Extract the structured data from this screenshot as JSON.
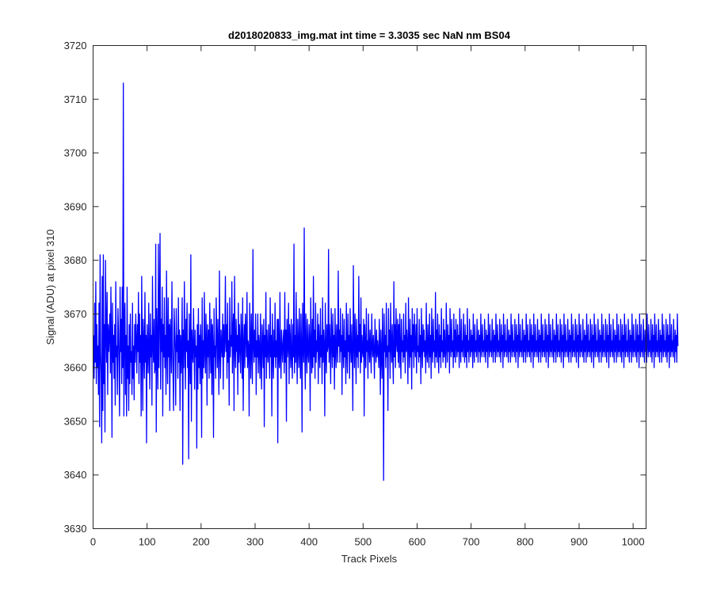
{
  "chart_data": {
    "type": "line",
    "title": "d2018020833_img.mat int time = 3.3035 sec  NaN nm BS04",
    "xlabel": "Track Pixels",
    "ylabel": "Signal (ADU) at pixel 310",
    "xlim": [
      0,
      1024
    ],
    "ylim": [
      3630,
      3720
    ],
    "xticks": [
      0,
      100,
      200,
      300,
      400,
      500,
      600,
      700,
      800,
      900,
      1000
    ],
    "yticks": [
      3630,
      3640,
      3650,
      3660,
      3670,
      3680,
      3690,
      3700,
      3710,
      3720
    ],
    "grid": false,
    "legend": "none",
    "series": [
      {
        "color": "#0000ff",
        "x_start": 1,
        "x_step": 1,
        "values": [
          3666,
          3658,
          3672,
          3661,
          3676,
          3657,
          3668,
          3660,
          3664,
          3655,
          3672,
          3649,
          3681,
          3663,
          3658,
          3646,
          3677,
          3652,
          3681,
          3657,
          3668,
          3648,
          3680,
          3667,
          3661,
          3674,
          3655,
          3668,
          3663,
          3666,
          3670,
          3659,
          3675,
          3664,
          3647,
          3672,
          3661,
          3666,
          3658,
          3668,
          3653,
          3676,
          3662,
          3664,
          3655,
          3671,
          3667,
          3660,
          3651,
          3675,
          3663,
          3669,
          3657,
          3675,
          3660,
          3713,
          3651,
          3668,
          3672,
          3655,
          3666,
          3651,
          3675,
          3658,
          3664,
          3652,
          3668,
          3657,
          3670,
          3661,
          3663,
          3655,
          3672,
          3658,
          3664,
          3654,
          3668,
          3661,
          3670,
          3665,
          3659,
          3668,
          3663,
          3674,
          3657,
          3670,
          3661,
          3666,
          3651,
          3677,
          3665,
          3652,
          3669,
          3664,
          3658,
          3674,
          3661,
          3666,
          3646,
          3668,
          3663,
          3659,
          3672,
          3663,
          3656,
          3670,
          3662,
          3666,
          3653,
          3677,
          3664,
          3661,
          3669,
          3659,
          3660,
          3683,
          3648,
          3671,
          3664,
          3656,
          3683,
          3660,
          3670,
          3685,
          3656,
          3669,
          3663,
          3675,
          3651,
          3668,
          3662,
          3673,
          3660,
          3666,
          3655,
          3678,
          3664,
          3657,
          3673,
          3662,
          3668,
          3652,
          3669,
          3665,
          3659,
          3676,
          3664,
          3659,
          3652,
          3671,
          3667,
          3663,
          3653,
          3671,
          3663,
          3666,
          3658,
          3673,
          3661,
          3667,
          3652,
          3666,
          3659,
          3664,
          3673,
          3642,
          3667,
          3660,
          3676,
          3664,
          3656,
          3669,
          3663,
          3672,
          3660,
          3665,
          3643,
          3670,
          3662,
          3657,
          3681,
          3650,
          3667,
          3663,
          3661,
          3671,
          3664,
          3656,
          3667,
          3662,
          3664,
          3645,
          3668,
          3656,
          3671,
          3660,
          3666,
          3657,
          3668,
          3664,
          3647,
          3673,
          3658,
          3665,
          3660,
          3674,
          3663,
          3659,
          3670,
          3665,
          3653,
          3668,
          3662,
          3667,
          3658,
          3672,
          3664,
          3659,
          3669,
          3655,
          3668,
          3664,
          3647,
          3671,
          3662,
          3664,
          3658,
          3673,
          3666,
          3660,
          3669,
          3663,
          3655,
          3678,
          3663,
          3658,
          3667,
          3664,
          3662,
          3670,
          3656,
          3668,
          3662,
          3665,
          3677,
          3663,
          3668,
          3658,
          3672,
          3661,
          3665,
          3653,
          3673,
          3662,
          3666,
          3664,
          3676,
          3659,
          3667,
          3670,
          3652,
          3677,
          3664,
          3660,
          3669,
          3663,
          3666,
          3655,
          3672,
          3661,
          3668,
          3664,
          3659,
          3670,
          3665,
          3658,
          3673,
          3652,
          3664,
          3668,
          3660,
          3670,
          3666,
          3662,
          3674,
          3660,
          3665,
          3664,
          3651,
          3672,
          3665,
          3658,
          3670,
          3663,
          3657,
          3682,
          3664,
          3661,
          3667,
          3662,
          3670,
          3655,
          3665,
          3662,
          3670,
          3659,
          3666,
          3664,
          3658,
          3670,
          3662,
          3656,
          3668,
          3665,
          3660,
          3669,
          3649,
          3666,
          3662,
          3674,
          3658,
          3667,
          3663,
          3661,
          3668,
          3664,
          3658,
          3673,
          3662,
          3666,
          3651,
          3670,
          3663,
          3658,
          3667,
          3662,
          3672,
          3660,
          3665,
          3662,
          3669,
          3646,
          3669,
          3663,
          3660,
          3674,
          3662,
          3658,
          3667,
          3664,
          3661,
          3665,
          3667,
          3659,
          3674,
          3661,
          3667,
          3650,
          3669,
          3662,
          3664,
          3672,
          3657,
          3668,
          3665,
          3660,
          3669,
          3662,
          3658,
          3668,
          3662,
          3683,
          3659,
          3666,
          3661,
          3674,
          3663,
          3657,
          3669,
          3664,
          3660,
          3671,
          3663,
          3658,
          3670,
          3664,
          3648,
          3672,
          3664,
          3661,
          3686,
          3663,
          3656,
          3670,
          3664,
          3659,
          3669,
          3663,
          3661,
          3668,
          3665,
          3652,
          3673,
          3664,
          3659,
          3669,
          3660,
          3677,
          3662,
          3667,
          3658,
          3672,
          3661,
          3665,
          3663,
          3670,
          3657,
          3668,
          3664,
          3660,
          3671,
          3662,
          3666,
          3657,
          3673,
          3661,
          3667,
          3664,
          3651,
          3672,
          3663,
          3659,
          3668,
          3663,
          3664,
          3682,
          3661,
          3668,
          3664,
          3657,
          3671,
          3665,
          3660,
          3670,
          3662,
          3666,
          3656,
          3671,
          3663,
          3660,
          3668,
          3665,
          3661,
          3678,
          3664,
          3667,
          3661,
          3671,
          3663,
          3666,
          3655,
          3670,
          3664,
          3660,
          3669,
          3662,
          3665,
          3657,
          3672,
          3663,
          3659,
          3670,
          3663,
          3666,
          3658,
          3671,
          3664,
          3661,
          3668,
          3662,
          3652,
          3679,
          3665,
          3660,
          3670,
          3664,
          3657,
          3669,
          3662,
          3666,
          3660,
          3677,
          3663,
          3668,
          3659,
          3673,
          3661,
          3666,
          3663,
          3662,
          3669,
          3651,
          3668,
          3664,
          3660,
          3671,
          3663,
          3665,
          3658,
          3670,
          3664,
          3661,
          3667,
          3663,
          3659,
          3670,
          3664,
          3662,
          3666,
          3663,
          3658,
          3669,
          3664,
          3661,
          3667,
          3662,
          3665,
          3663,
          3660,
          3669,
          3664,
          3655,
          3667,
          3662,
          3658,
          3671,
          3664,
          3639,
          3670,
          3663,
          3666,
          3660,
          3672,
          3662,
          3664,
          3652,
          3671,
          3663,
          3667,
          3658,
          3672,
          3664,
          3661,
          3668,
          3662,
          3657,
          3676,
          3662,
          3668,
          3660,
          3671,
          3665,
          3663,
          3669,
          3661,
          3668,
          3660,
          3670,
          3664,
          3658,
          3669,
          3663,
          3665,
          3661,
          3670,
          3662,
          3666,
          3659,
          3672,
          3663,
          3667,
          3664,
          3657,
          3673,
          3664,
          3660,
          3669,
          3662,
          3666,
          3656,
          3671,
          3663,
          3668,
          3660,
          3670,
          3664,
          3662,
          3668,
          3659,
          3671,
          3663,
          3664,
          3661,
          3669,
          3662,
          3666,
          3657,
          3671,
          3664,
          3660,
          3668,
          3663,
          3667,
          3662,
          3665,
          3659,
          3672,
          3663,
          3661,
          3668,
          3664,
          3660,
          3670,
          3662,
          3666,
          3658,
          3671,
          3664,
          3661,
          3669,
          3663,
          3665,
          3660,
          3674,
          3662,
          3667,
          3661,
          3670,
          3664,
          3659,
          3668,
          3662,
          3666,
          3660,
          3671,
          3663,
          3665,
          3661,
          3669,
          3662,
          3667,
          3663,
          3660,
          3672,
          3664,
          3661,
          3668,
          3663,
          3666,
          3659,
          3671,
          3664,
          3662,
          3669,
          3663,
          3665,
          3660,
          3670,
          3662,
          3667,
          3661,
          3669,
          3664,
          3662,
          3668,
          3663,
          3666,
          3660,
          3671,
          3664,
          3661,
          3669,
          3663,
          3665,
          3662,
          3670,
          3664,
          3661,
          3668,
          3662,
          3666,
          3660,
          3671,
          3663,
          3665,
          3661,
          3669,
          3664,
          3662,
          3667,
          3663,
          3666,
          3660,
          3670,
          3664,
          3661,
          3668,
          3663,
          3665,
          3662,
          3669,
          3664,
          3661,
          3667,
          3663,
          3666,
          3661,
          3670,
          3664,
          3662,
          3668,
          3663,
          3665,
          3662,
          3669,
          3664,
          3661,
          3667,
          3663,
          3666,
          3660,
          3670,
          3664,
          3662,
          3668,
          3663,
          3665,
          3662,
          3669,
          3664,
          3661,
          3667,
          3663,
          3666,
          3661,
          3670,
          3664,
          3662,
          3668,
          3663,
          3665,
          3662,
          3669,
          3664,
          3661,
          3668,
          3663,
          3666,
          3660,
          3670,
          3664,
          3662,
          3668,
          3663,
          3665,
          3662,
          3669,
          3664,
          3661,
          3667,
          3663,
          3666,
          3661,
          3670,
          3664,
          3662,
          3668,
          3663,
          3665,
          3662,
          3669,
          3664,
          3661,
          3668,
          3663,
          3666,
          3660,
          3670,
          3664,
          3662,
          3668,
          3663,
          3665,
          3662,
          3669,
          3664,
          3661,
          3667,
          3663,
          3666,
          3661,
          3670,
          3664,
          3662,
          3668,
          3663,
          3665,
          3662,
          3669,
          3664,
          3661,
          3668,
          3663,
          3666,
          3660,
          3670,
          3664,
          3662,
          3668,
          3663,
          3665,
          3662,
          3669,
          3664,
          3661,
          3667,
          3663,
          3666,
          3661,
          3670,
          3664,
          3662,
          3668,
          3663,
          3665,
          3662,
          3669,
          3664,
          3661,
          3668,
          3663,
          3666,
          3660,
          3670,
          3664,
          3662,
          3668,
          3663,
          3665,
          3662,
          3669,
          3664,
          3661,
          3667,
          3663,
          3666,
          3661,
          3670,
          3664,
          3662,
          3668,
          3663,
          3665,
          3662,
          3669,
          3664,
          3661,
          3668,
          3663,
          3666,
          3660,
          3670,
          3664,
          3662,
          3668,
          3663,
          3665,
          3662,
          3669,
          3664,
          3661,
          3667,
          3663,
          3666,
          3661,
          3670,
          3664,
          3662,
          3668,
          3663,
          3665,
          3662,
          3669,
          3664,
          3661,
          3668,
          3663,
          3666,
          3660,
          3670,
          3664,
          3662,
          3668,
          3663,
          3665,
          3662,
          3669,
          3664,
          3661,
          3667,
          3663,
          3666,
          3661,
          3670,
          3664,
          3662,
          3668,
          3663,
          3665,
          3662,
          3669,
          3664,
          3661,
          3668,
          3663,
          3666,
          3660,
          3670,
          3664,
          3662,
          3668,
          3663,
          3665,
          3662,
          3669,
          3664,
          3661,
          3667,
          3663,
          3666,
          3661,
          3670,
          3664,
          3662,
          3668,
          3663,
          3665,
          3662,
          3669,
          3664,
          3661,
          3668,
          3663,
          3666,
          3660,
          3670,
          3664,
          3662,
          3668,
          3663,
          3665,
          3662,
          3669,
          3664,
          3661,
          3667,
          3663,
          3666,
          3661,
          3670,
          3664,
          3662,
          3668,
          3663,
          3665,
          3662,
          3669,
          3664,
          3661,
          3668,
          3663,
          3666,
          3660,
          3670,
          3664,
          3662,
          3668,
          3663,
          3665,
          3662,
          3669,
          3664,
          3661,
          3667,
          3663,
          3666,
          3661,
          3670,
          3664,
          3662,
          3668,
          3663,
          3665,
          3662,
          3669,
          3664,
          3661,
          3668,
          3663,
          3666,
          3660,
          3670,
          3664,
          3662,
          3668,
          3663,
          3665,
          3662,
          3669,
          3664,
          3661,
          3667,
          3663,
          3666,
          3661,
          3670,
          3664,
          3662,
          3668,
          3663,
          3665,
          3662,
          3669,
          3664,
          3661,
          3668,
          3663,
          3666,
          3660,
          3670,
          3664,
          3662,
          3668,
          3663,
          3665,
          3662,
          3669,
          3664,
          3661,
          3667,
          3663,
          3666,
          3661,
          3670,
          3664,
          3662,
          3668,
          3663,
          3665,
          3662,
          3669,
          3664,
          3661,
          3668,
          3663,
          3666,
          3660,
          3670,
          3664,
          3662,
          3668,
          3663,
          3665,
          3662,
          3669,
          3664,
          3661,
          3667,
          3663,
          3666,
          3661,
          3670,
          3664
        ]
      }
    ]
  }
}
